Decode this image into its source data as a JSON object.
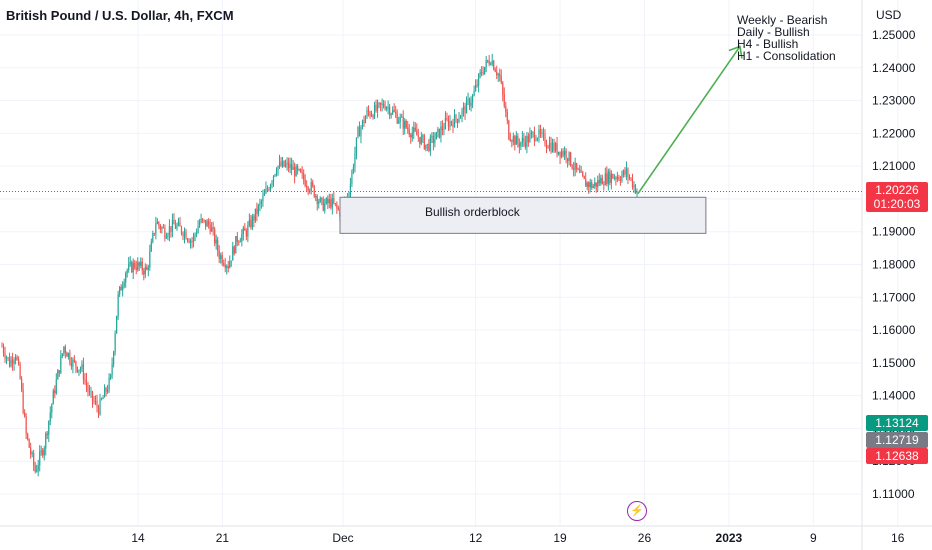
{
  "header": {
    "title": "British Pound / U.S. Dollar, 4h, FXCM"
  },
  "notes": [
    "Weekly - Bearish",
    "Daily - Bullish",
    "H4 - Bullish",
    "H1 - Consolidation"
  ],
  "price_axis": {
    "currency": "USD"
  },
  "zone": {
    "label": "Bullish orderblock"
  },
  "badges": {
    "current_price": "1.20226",
    "countdown": "01:20:03",
    "tag1": "1.13124",
    "tag2": "1.12719",
    "tag3": "1.12638"
  },
  "colors": {
    "up": "#26a69a",
    "down": "#ef5350",
    "arrow": "#4caf50",
    "zone": "#eceef3",
    "grid": "#f0f3fa"
  },
  "icons": {
    "alert": "lightning-icon"
  },
  "chart_data": {
    "type": "candlestick",
    "y_ticks": [
      "1.25000",
      "1.24000",
      "1.23000",
      "1.22000",
      "1.21000",
      "1.20000",
      "1.19000",
      "1.18000",
      "1.17000",
      "1.16000",
      "1.15000",
      "1.14000",
      "1.13000",
      "1.12000",
      "1.11000"
    ],
    "x_ticks": [
      "14",
      "21",
      "Dec",
      "12",
      "19",
      "26",
      "2023",
      "9",
      "16"
    ],
    "ylim": [
      1.102,
      1.2585
    ],
    "x_range": [
      "2022-11-07",
      "2023-01-18"
    ],
    "last_price": 1.20226,
    "trend_path": [
      [
        0,
        1.155
      ],
      [
        5,
        1.15
      ],
      [
        9,
        1.153
      ],
      [
        12,
        1.145
      ],
      [
        16,
        1.128
      ],
      [
        22,
        1.117
      ],
      [
        28,
        1.125
      ],
      [
        34,
        1.14
      ],
      [
        41,
        1.155
      ],
      [
        47,
        1.15
      ],
      [
        53,
        1.148
      ],
      [
        58,
        1.14
      ],
      [
        64,
        1.136
      ],
      [
        72,
        1.145
      ],
      [
        77,
        1.17
      ],
      [
        82,
        1.178
      ],
      [
        88,
        1.18
      ],
      [
        96,
        1.178
      ],
      [
        102,
        1.193
      ],
      [
        108,
        1.19
      ],
      [
        114,
        1.192
      ],
      [
        121,
        1.19
      ],
      [
        126,
        1.187
      ],
      [
        131,
        1.193
      ],
      [
        138,
        1.192
      ],
      [
        144,
        1.183
      ],
      [
        150,
        1.18
      ],
      [
        156,
        1.188
      ],
      [
        162,
        1.19
      ],
      [
        170,
        1.197
      ],
      [
        176,
        1.203
      ],
      [
        182,
        1.21
      ],
      [
        190,
        1.21
      ],
      [
        198,
        1.207
      ],
      [
        206,
        1.203
      ],
      [
        212,
        1.198
      ],
      [
        218,
        1.199
      ],
      [
        224,
        1.196
      ],
      [
        230,
        1.202
      ],
      [
        236,
        1.22
      ],
      [
        242,
        1.226
      ],
      [
        248,
        1.227
      ],
      [
        254,
        1.229
      ],
      [
        262,
        1.225
      ],
      [
        270,
        1.221
      ],
      [
        276,
        1.219
      ],
      [
        282,
        1.216
      ],
      [
        288,
        1.219
      ],
      [
        294,
        1.223
      ],
      [
        300,
        1.224
      ],
      [
        306,
        1.227
      ],
      [
        312,
        1.231
      ],
      [
        318,
        1.239
      ],
      [
        324,
        1.243
      ],
      [
        330,
        1.237
      ],
      [
        336,
        1.22
      ],
      [
        342,
        1.217
      ],
      [
        348,
        1.218
      ],
      [
        354,
        1.22
      ],
      [
        362,
        1.217
      ],
      [
        368,
        1.215
      ],
      [
        374,
        1.214
      ],
      [
        380,
        1.209
      ],
      [
        386,
        1.205
      ],
      [
        392,
        1.204
      ],
      [
        398,
        1.206
      ],
      [
        404,
        1.207
      ],
      [
        410,
        1.207
      ],
      [
        414,
        1.208
      ],
      [
        418,
        1.205
      ],
      [
        421,
        1.2023
      ]
    ],
    "orderblock": {
      "x_start": "2022-12-01",
      "x_end": "2023-01-02",
      "y_range": [
        1.1895,
        1.2005
      ]
    },
    "arrow_target": {
      "x": "2023-01-03",
      "y": 1.2465
    }
  }
}
